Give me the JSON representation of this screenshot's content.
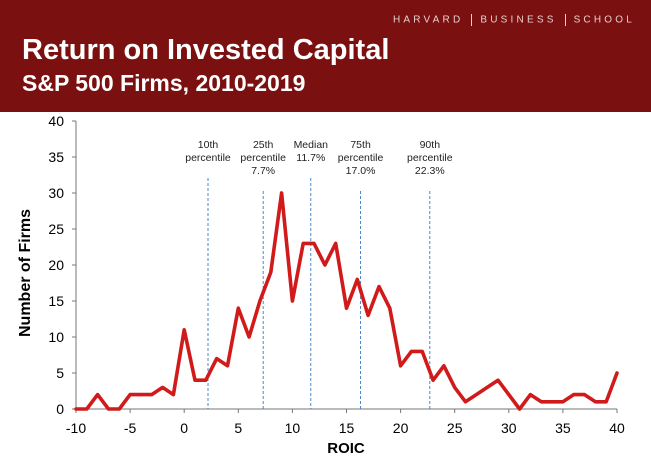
{
  "header": {
    "brand_words": [
      "HARVARD",
      "BUSINESS",
      "SCHOOL"
    ],
    "title": "Return on Invested Capital",
    "subtitle": "S&P 500 Firms, 2010-2019"
  },
  "colors": {
    "banner": "#7a1010",
    "line": "#d11a1a",
    "marker": "#3a7abf"
  },
  "chart_data": {
    "type": "line",
    "title": "Return on Invested Capital",
    "subtitle": "S&P 500 Firms, 2010-2019",
    "xlabel": "ROIC",
    "ylabel": "Number of Firms",
    "xlim": [
      -10,
      40
    ],
    "ylim": [
      0,
      40
    ],
    "xticks": [
      -10,
      -5,
      0,
      5,
      10,
      15,
      20,
      25,
      30,
      35,
      40
    ],
    "yticks": [
      0,
      5,
      10,
      15,
      20,
      25,
      30,
      35,
      40
    ],
    "grid": false,
    "series": [
      {
        "name": "Number of Firms",
        "x": [
          -10,
          -9,
          -8,
          -7,
          -6,
          -5,
          -4,
          -3,
          -2,
          -1,
          0,
          1,
          2,
          3,
          4,
          5,
          6,
          7,
          8,
          9,
          10,
          11,
          12,
          13,
          14,
          15,
          16,
          17,
          18,
          19,
          20,
          21,
          22,
          23,
          24,
          25,
          26,
          27,
          28,
          29,
          30,
          31,
          32,
          33,
          34,
          35,
          36,
          37,
          38,
          39,
          40
        ],
        "values": [
          0,
          0,
          2,
          0,
          0,
          2,
          2,
          2,
          3,
          2,
          11,
          4,
          4,
          7,
          6,
          14,
          10,
          15,
          19,
          30,
          15,
          23,
          23,
          20,
          23,
          14,
          18,
          13,
          17,
          14,
          6,
          8,
          8,
          4,
          6,
          3,
          1,
          2,
          3,
          4,
          2,
          0,
          2,
          1,
          1,
          1,
          2,
          2,
          1,
          1,
          5
        ]
      }
    ],
    "annotations": [
      {
        "x": 2.2,
        "lines": [
          "10th",
          "percentile"
        ]
      },
      {
        "x": 7.3,
        "lines": [
          "25th",
          "percentile",
          "7.7%"
        ]
      },
      {
        "x": 11.7,
        "lines": [
          "Median",
          "11.7%"
        ]
      },
      {
        "x": 16.3,
        "lines": [
          "75th",
          "percentile",
          "17.0%"
        ]
      },
      {
        "x": 22.7,
        "lines": [
          "90th",
          "percentile",
          "22.3%"
        ]
      }
    ]
  }
}
